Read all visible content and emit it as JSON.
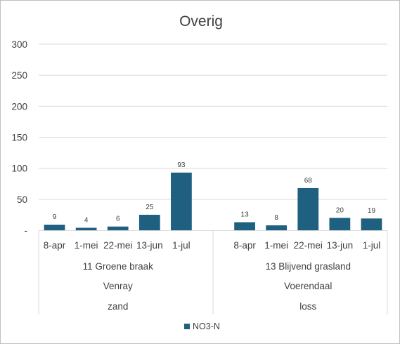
{
  "chart_data": {
    "type": "bar",
    "title": "Overig",
    "ylim": [
      0,
      300
    ],
    "yticks": [
      0,
      50,
      100,
      150,
      200,
      250,
      300
    ],
    "ytick_labels": [
      "-",
      "50",
      "100",
      "150",
      "200",
      "250",
      "300"
    ],
    "grid": true,
    "legend": "bottom",
    "color": "#1f5f80",
    "groups": [
      {
        "location": "11 Groene braak",
        "place": "Venray",
        "soil": "zand",
        "categories": [
          "8-apr",
          "1-mei",
          "22-mei",
          "13-jun",
          "1-jul"
        ],
        "values": [
          9,
          4,
          6,
          25,
          93
        ]
      },
      {
        "location": "13 Blijvend grasland",
        "place": "Voerendaal",
        "soil": "loss",
        "categories": [
          "8-apr",
          "1-mei",
          "22-mei",
          "13-jun",
          "1-jul"
        ],
        "values": [
          13,
          8,
          68,
          20,
          19
        ]
      }
    ],
    "series": [
      {
        "name": "NO3-N"
      }
    ]
  }
}
